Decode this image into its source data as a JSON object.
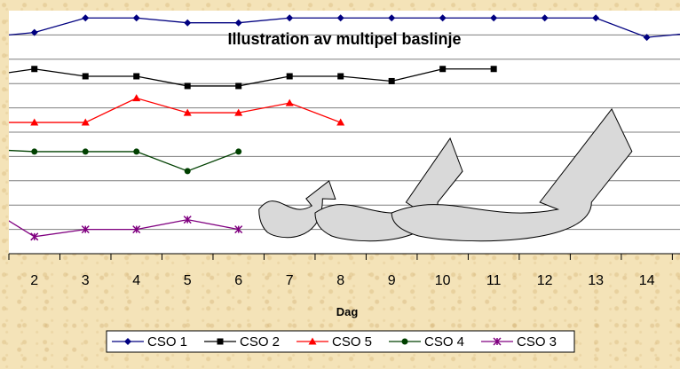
{
  "chart_data": {
    "type": "line",
    "title": "Illustration av multipel baslinje",
    "xlabel": "Dag",
    "ylabel": "",
    "x": [
      1,
      2,
      3,
      4,
      5,
      6,
      7,
      8,
      9,
      10,
      11,
      12,
      13,
      14,
      15
    ],
    "xticks": [
      "2",
      "3",
      "4",
      "5",
      "6",
      "7",
      "8",
      "9",
      "10",
      "11",
      "12",
      "13",
      "14"
    ],
    "xlim": [
      1.5,
      14.65
    ],
    "ylim": [
      0,
      10
    ],
    "grid": true,
    "legend_position": "bottom",
    "series": [
      {
        "name": "CSO 1",
        "color": "#000080",
        "marker": "diamond",
        "values": [
          8.9,
          9.1,
          9.7,
          9.7,
          9.5,
          9.5,
          9.7,
          9.7,
          9.7,
          9.7,
          9.7,
          9.7,
          9.7,
          8.9,
          9.1
        ]
      },
      {
        "name": "CSO 2",
        "color": "#000000",
        "marker": "square",
        "values": [
          7.3,
          7.6,
          7.3,
          7.3,
          6.9,
          6.9,
          7.3,
          7.3,
          7.1,
          7.6,
          7.6,
          null,
          null,
          null,
          null
        ]
      },
      {
        "name": "CSO 5",
        "color": "#ff0000",
        "marker": "triangle",
        "values": [
          5.4,
          5.4,
          5.4,
          6.4,
          5.8,
          5.8,
          6.2,
          5.4,
          null,
          null,
          null,
          null,
          null,
          null,
          null
        ]
      },
      {
        "name": "CSO 4",
        "color": "#004000",
        "marker": "circle",
        "values": [
          4.3,
          4.2,
          4.2,
          4.2,
          3.4,
          4.2,
          null,
          null,
          null,
          null,
          null,
          null,
          null,
          null,
          null
        ]
      },
      {
        "name": "CSO 3",
        "color": "#800080",
        "marker": "star",
        "values": [
          2.0,
          0.7,
          1.0,
          1.0,
          1.4,
          1.0,
          null,
          null,
          null,
          null,
          null,
          null,
          null,
          null,
          null
        ]
      }
    ],
    "legend_order": [
      "CSO 1",
      "CSO 2",
      "CSO 5",
      "CSO 4",
      "CSO 3"
    ],
    "annotations": [
      {
        "type": "curved-arrow",
        "from_x": 6.4,
        "to_x": 7.8
      },
      {
        "type": "curved-arrow",
        "from_x": 7.5,
        "to_x": 10.2
      },
      {
        "type": "curved-arrow",
        "from_x": 9.0,
        "to_x": 13.4
      }
    ]
  }
}
